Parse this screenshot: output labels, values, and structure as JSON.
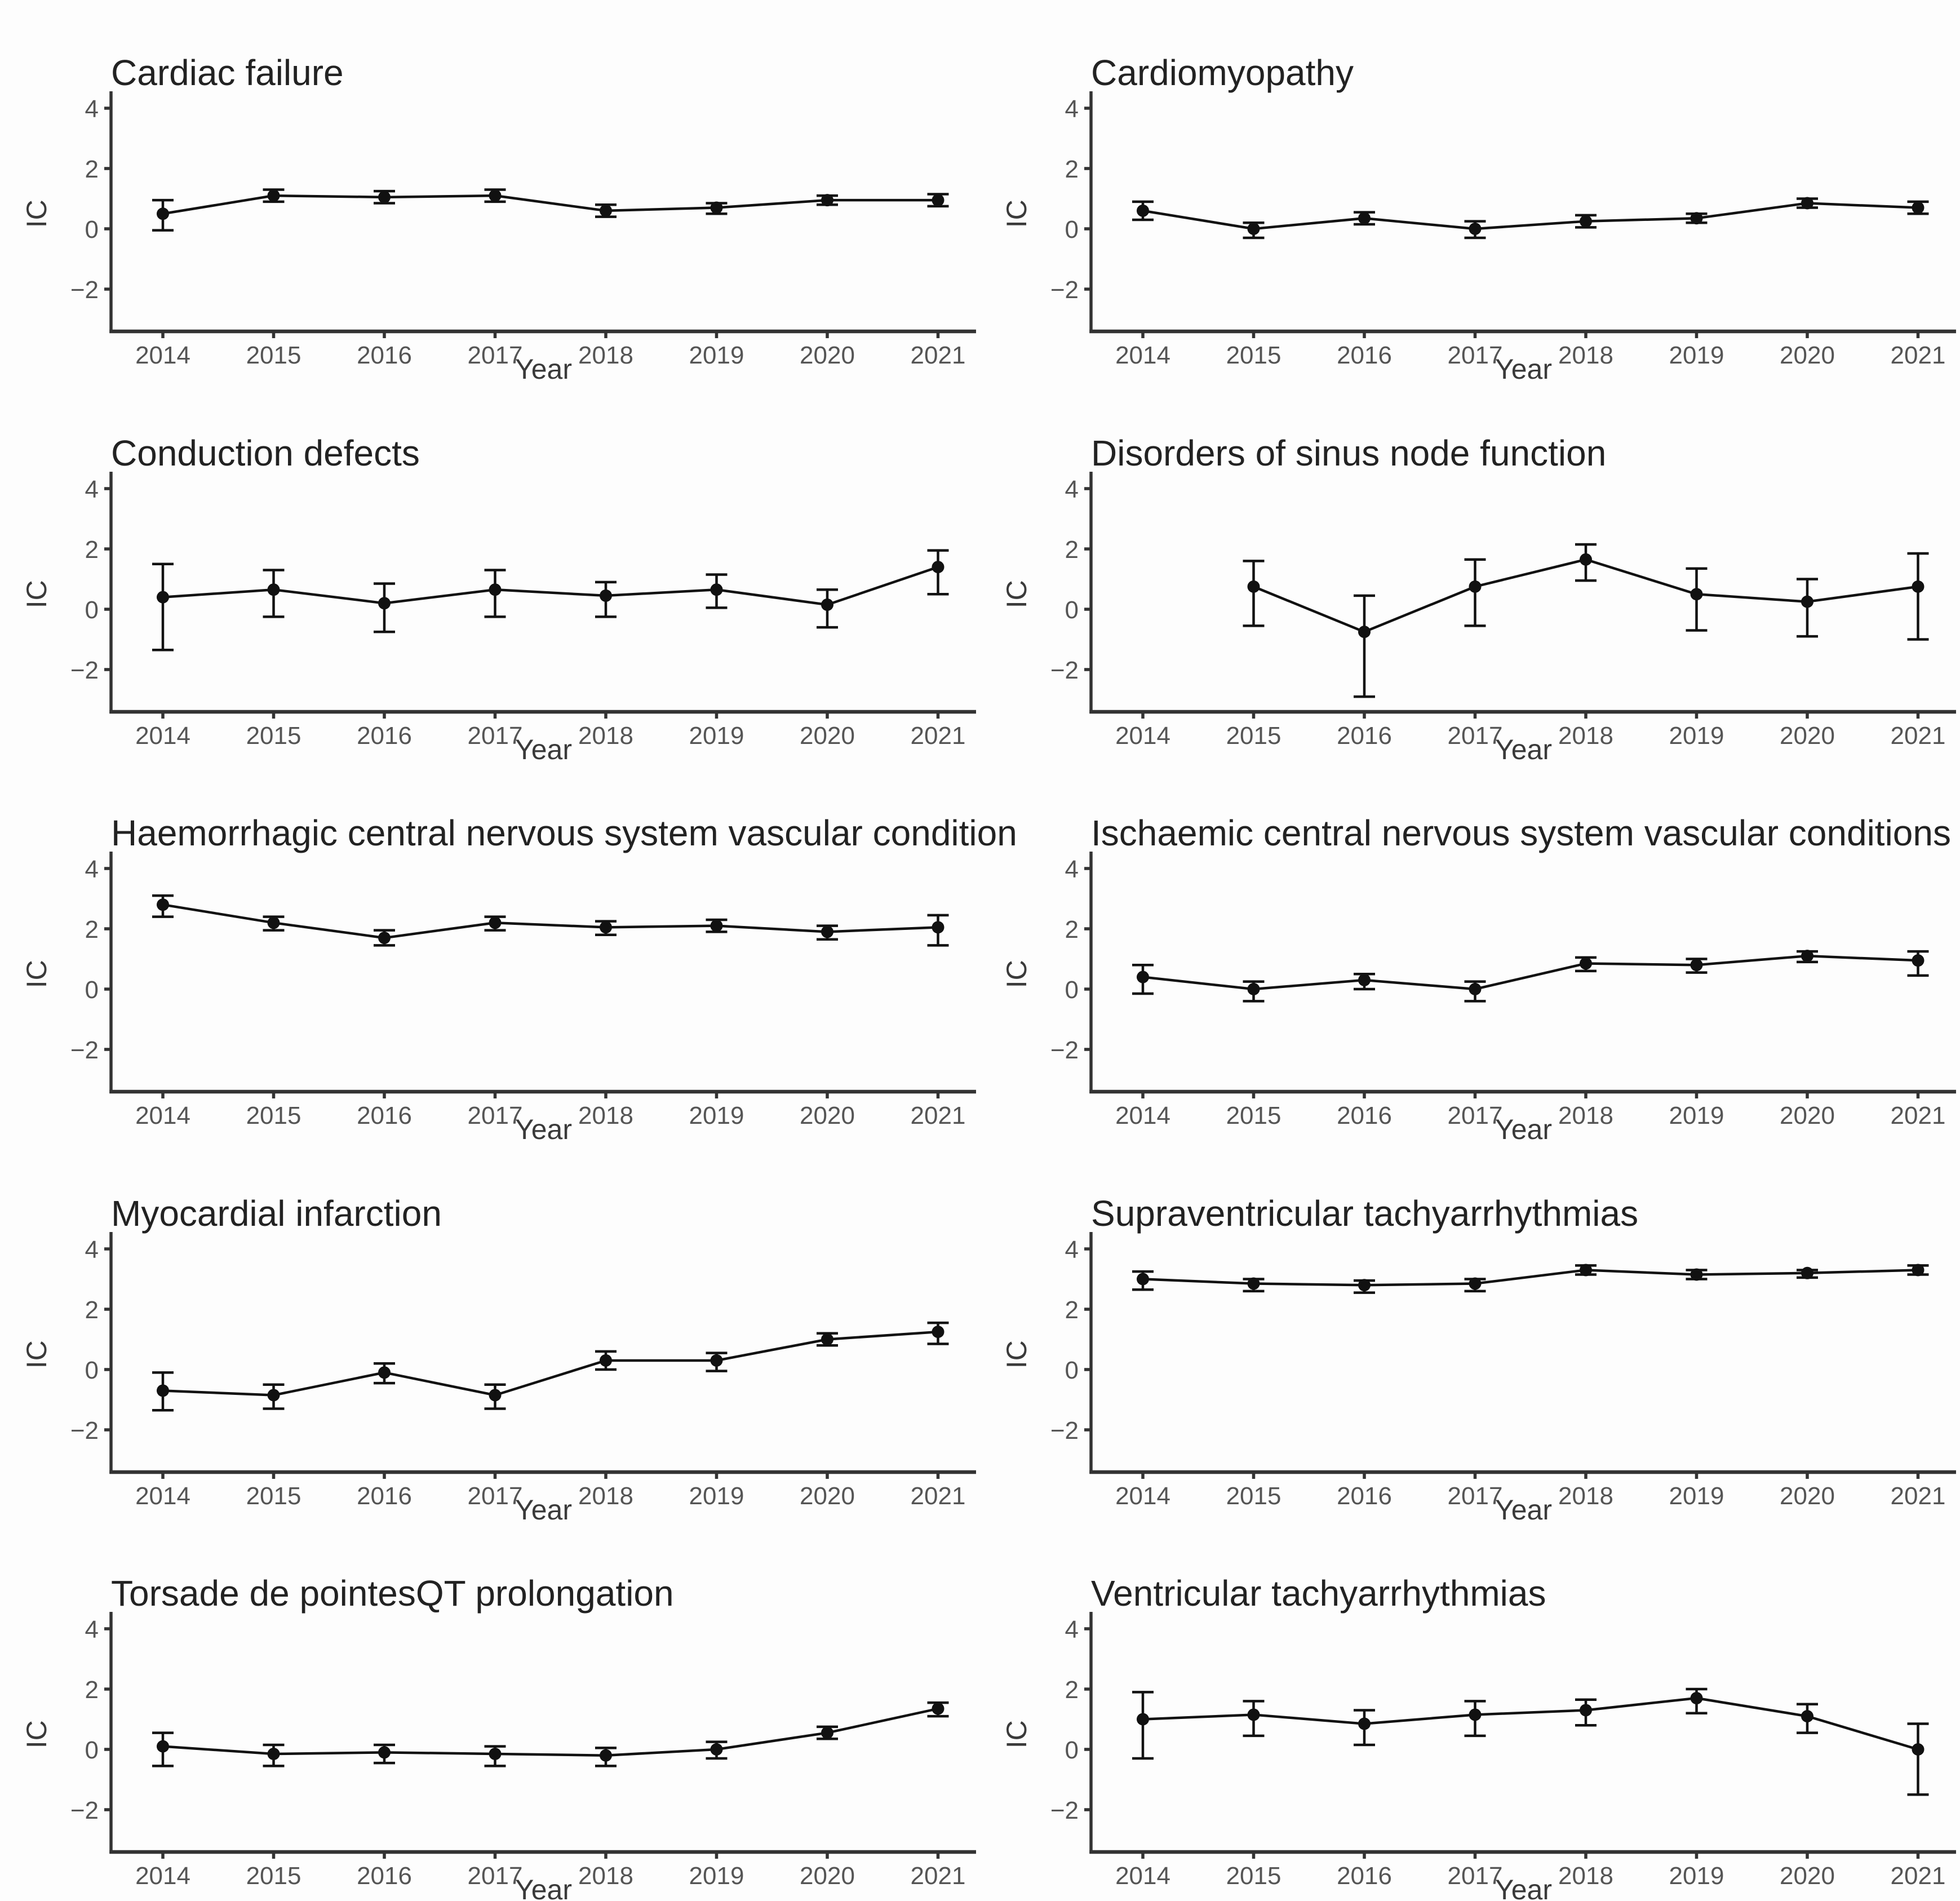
{
  "figure": {
    "xlabel": "Year",
    "ylabel": "IC",
    "years": [
      2014,
      2015,
      2016,
      2017,
      2018,
      2019,
      2020,
      2021
    ],
    "yticks": [
      -2,
      0,
      2,
      4
    ],
    "ylim": [
      -3.4,
      4.55
    ],
    "colors": {
      "point": "#111111",
      "line": "#111111",
      "error_bar": "#111111",
      "axis": "#333333",
      "tick_label": "#555555",
      "axis_title": "#3a3a3a",
      "title": "#222222",
      "background": "#fdfdfd"
    }
  },
  "chart_data": [
    {
      "type": "line",
      "title": "Cardiac failure",
      "xlabel": "Year",
      "ylabel": "IC",
      "x": [
        2014,
        2015,
        2016,
        2017,
        2018,
        2019,
        2020,
        2021
      ],
      "ylim": [
        -3.4,
        4.55
      ],
      "yticks": [
        -2,
        0,
        2,
        4
      ],
      "grid": false,
      "series": [
        {
          "name": "IC",
          "values": [
            0.5,
            1.1,
            1.05,
            1.1,
            0.6,
            0.7,
            0.95,
            0.95
          ],
          "ci_low": [
            -0.05,
            0.9,
            0.85,
            0.9,
            0.4,
            0.5,
            0.8,
            0.75
          ],
          "ci_high": [
            0.95,
            1.3,
            1.25,
            1.3,
            0.8,
            0.85,
            1.1,
            1.15
          ]
        }
      ]
    },
    {
      "type": "line",
      "title": "Cardiomyopathy",
      "xlabel": "Year",
      "ylabel": "IC",
      "x": [
        2014,
        2015,
        2016,
        2017,
        2018,
        2019,
        2020,
        2021
      ],
      "ylim": [
        -3.4,
        4.55
      ],
      "yticks": [
        -2,
        0,
        2,
        4
      ],
      "grid": false,
      "series": [
        {
          "name": "IC",
          "values": [
            0.6,
            0.0,
            0.35,
            0.0,
            0.25,
            0.35,
            0.85,
            0.7
          ],
          "ci_low": [
            0.3,
            -0.3,
            0.15,
            -0.3,
            0.05,
            0.2,
            0.7,
            0.5
          ],
          "ci_high": [
            0.9,
            0.2,
            0.55,
            0.25,
            0.45,
            0.5,
            1.0,
            0.9
          ]
        }
      ]
    },
    {
      "type": "line",
      "title": "Conduction defects",
      "xlabel": "Year",
      "ylabel": "IC",
      "x": [
        2014,
        2015,
        2016,
        2017,
        2018,
        2019,
        2020,
        2021
      ],
      "ylim": [
        -3.4,
        4.55
      ],
      "yticks": [
        -2,
        0,
        2,
        4
      ],
      "grid": false,
      "series": [
        {
          "name": "IC",
          "values": [
            0.4,
            0.65,
            0.2,
            0.65,
            0.45,
            0.65,
            0.15,
            1.4
          ],
          "ci_low": [
            -1.35,
            -0.25,
            -0.75,
            -0.25,
            -0.25,
            0.05,
            -0.6,
            0.5
          ],
          "ci_high": [
            1.5,
            1.3,
            0.85,
            1.3,
            0.9,
            1.15,
            0.65,
            1.95
          ]
        }
      ]
    },
    {
      "type": "line",
      "title": "Disorders of sinus node function",
      "xlabel": "Year",
      "ylabel": "IC",
      "x": [
        2014,
        2015,
        2016,
        2017,
        2018,
        2019,
        2020,
        2021
      ],
      "ylim": [
        -3.4,
        4.55
      ],
      "yticks": [
        -2,
        0,
        2,
        4
      ],
      "grid": false,
      "series": [
        {
          "name": "IC",
          "values": [
            null,
            0.75,
            -0.75,
            0.75,
            1.65,
            0.5,
            0.25,
            0.75
          ],
          "ci_low": [
            null,
            -0.55,
            -2.9,
            -0.55,
            0.95,
            -0.7,
            -0.9,
            -1.0
          ],
          "ci_high": [
            null,
            1.6,
            0.45,
            1.65,
            2.15,
            1.35,
            1.0,
            1.85
          ]
        }
      ]
    },
    {
      "type": "line",
      "title": "Haemorrhagic central nervous system vascular condition",
      "xlabel": "Year",
      "ylabel": "IC",
      "x": [
        2014,
        2015,
        2016,
        2017,
        2018,
        2019,
        2020,
        2021
      ],
      "ylim": [
        -3.4,
        4.55
      ],
      "yticks": [
        -2,
        0,
        2,
        4
      ],
      "grid": false,
      "series": [
        {
          "name": "IC",
          "values": [
            2.8,
            2.2,
            1.7,
            2.2,
            2.05,
            2.1,
            1.9,
            2.05
          ],
          "ci_low": [
            2.4,
            1.95,
            1.45,
            1.95,
            1.8,
            1.9,
            1.65,
            1.45
          ],
          "ci_high": [
            3.1,
            2.4,
            1.95,
            2.4,
            2.25,
            2.3,
            2.1,
            2.45
          ]
        }
      ]
    },
    {
      "type": "line",
      "title": "Ischaemic central nervous system vascular conditions",
      "xlabel": "Year",
      "ylabel": "IC",
      "x": [
        2014,
        2015,
        2016,
        2017,
        2018,
        2019,
        2020,
        2021
      ],
      "ylim": [
        -3.4,
        4.55
      ],
      "yticks": [
        -2,
        0,
        2,
        4
      ],
      "grid": false,
      "series": [
        {
          "name": "IC",
          "values": [
            0.4,
            0.0,
            0.3,
            0.0,
            0.85,
            0.8,
            1.1,
            0.95
          ],
          "ci_low": [
            -0.15,
            -0.4,
            0.0,
            -0.4,
            0.6,
            0.55,
            0.9,
            0.45
          ],
          "ci_high": [
            0.8,
            0.25,
            0.5,
            0.25,
            1.05,
            1.0,
            1.25,
            1.25
          ]
        }
      ]
    },
    {
      "type": "line",
      "title": "Myocardial infarction",
      "xlabel": "Year",
      "ylabel": "IC",
      "x": [
        2014,
        2015,
        2016,
        2017,
        2018,
        2019,
        2020,
        2021
      ],
      "ylim": [
        -3.4,
        4.55
      ],
      "yticks": [
        -2,
        0,
        2,
        4
      ],
      "grid": false,
      "series": [
        {
          "name": "IC",
          "values": [
            -0.7,
            -0.85,
            -0.1,
            -0.85,
            0.3,
            0.3,
            1.0,
            1.25
          ],
          "ci_low": [
            -1.35,
            -1.3,
            -0.45,
            -1.3,
            0.0,
            -0.05,
            0.8,
            0.85
          ],
          "ci_high": [
            -0.1,
            -0.5,
            0.2,
            -0.5,
            0.6,
            0.55,
            1.2,
            1.55
          ]
        }
      ]
    },
    {
      "type": "line",
      "title": "Supraventricular tachyarrhythmias",
      "xlabel": "Year",
      "ylabel": "IC",
      "x": [
        2014,
        2015,
        2016,
        2017,
        2018,
        2019,
        2020,
        2021
      ],
      "ylim": [
        -3.4,
        4.55
      ],
      "yticks": [
        -2,
        0,
        2,
        4
      ],
      "grid": false,
      "series": [
        {
          "name": "IC",
          "values": [
            3.0,
            2.85,
            2.8,
            2.85,
            3.3,
            3.15,
            3.2,
            3.3
          ],
          "ci_low": [
            2.65,
            2.6,
            2.55,
            2.6,
            3.15,
            3.0,
            3.05,
            3.15
          ],
          "ci_high": [
            3.25,
            3.0,
            2.95,
            3.0,
            3.45,
            3.3,
            3.3,
            3.45
          ]
        }
      ]
    },
    {
      "type": "line",
      "title": "Torsade de pointesQT prolongation",
      "xlabel": "Year",
      "ylabel": "IC",
      "x": [
        2014,
        2015,
        2016,
        2017,
        2018,
        2019,
        2020,
        2021
      ],
      "ylim": [
        -3.4,
        4.55
      ],
      "yticks": [
        -2,
        0,
        2,
        4
      ],
      "grid": false,
      "series": [
        {
          "name": "IC",
          "values": [
            0.1,
            -0.15,
            -0.1,
            -0.15,
            -0.2,
            0.0,
            0.55,
            1.35
          ],
          "ci_low": [
            -0.55,
            -0.55,
            -0.45,
            -0.55,
            -0.55,
            -0.3,
            0.35,
            1.1
          ],
          "ci_high": [
            0.55,
            0.15,
            0.15,
            0.1,
            0.05,
            0.25,
            0.75,
            1.55
          ]
        }
      ]
    },
    {
      "type": "line",
      "title": "Ventricular tachyarrhythmias",
      "xlabel": "Year",
      "ylabel": "IC",
      "x": [
        2014,
        2015,
        2016,
        2017,
        2018,
        2019,
        2020,
        2021
      ],
      "ylim": [
        -3.4,
        4.55
      ],
      "yticks": [
        -2,
        0,
        2,
        4
      ],
      "grid": false,
      "series": [
        {
          "name": "IC",
          "values": [
            1.0,
            1.15,
            0.85,
            1.15,
            1.3,
            1.7,
            1.1,
            0.0
          ],
          "ci_low": [
            -0.3,
            0.45,
            0.15,
            0.45,
            0.8,
            1.2,
            0.55,
            -1.5
          ],
          "ci_high": [
            1.9,
            1.6,
            1.3,
            1.6,
            1.65,
            2.0,
            1.5,
            0.85
          ]
        }
      ]
    }
  ]
}
